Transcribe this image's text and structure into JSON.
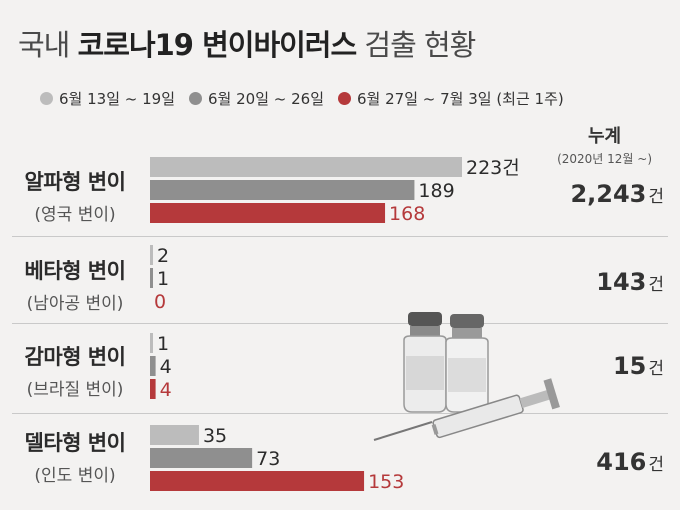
{
  "title": {
    "prefix": "국내",
    "highlight": "코로나19 변이바이러스",
    "suffix": "검출 현황"
  },
  "colors": {
    "week1": "#bcbcbc",
    "week2": "#8f8f8f",
    "week3": "#b5393b",
    "background": "#f3f2f1"
  },
  "cumulative": {
    "title": "누계",
    "subtitle": "(2020년 12월 ~)",
    "unit": "건"
  },
  "chart_data": {
    "type": "bar",
    "orientation": "horizontal",
    "categories": [
      {
        "name": "알파형 변이",
        "sub": "(영국 변이)",
        "cumulative": "2,243"
      },
      {
        "name": "베타형 변이",
        "sub": "(남아공 변이)",
        "cumulative": "143"
      },
      {
        "name": "감마형 변이",
        "sub": "(브라질 변이)",
        "cumulative": "15"
      },
      {
        "name": "델타형 변이",
        "sub": "(인도 변이)",
        "cumulative": "416"
      }
    ],
    "series": [
      {
        "name": "6월 13일 ~ 19일",
        "values": [
          223,
          2,
          1,
          35
        ]
      },
      {
        "name": "6월 20일 ~ 26일",
        "values": [
          189,
          1,
          4,
          73
        ]
      },
      {
        "name": "6월 27일 ~ 7월 3일 (최근 1주)",
        "values": [
          168,
          0,
          4,
          153
        ]
      }
    ],
    "value_unit": "건",
    "xlim": [
      0,
      223
    ]
  }
}
